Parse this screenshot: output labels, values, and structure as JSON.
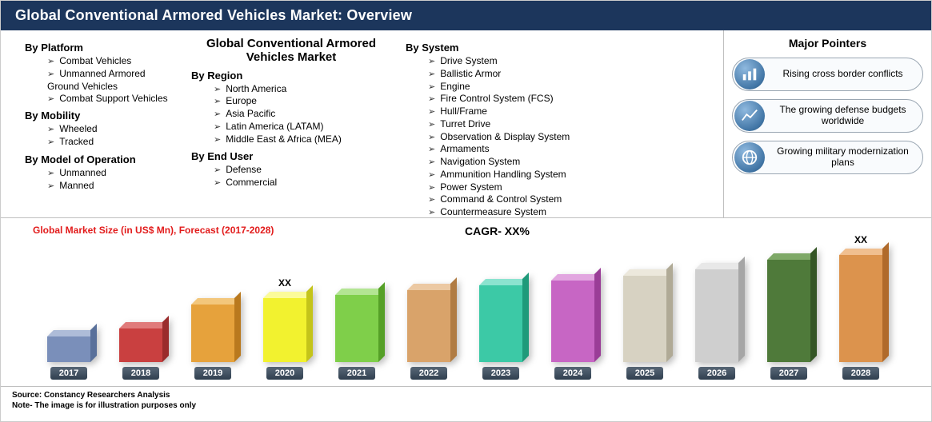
{
  "title": "Global Conventional Armored Vehicles Market: Overview",
  "segments": {
    "col1": [
      {
        "heading": "By Platform",
        "items": [
          "Combat Vehicles",
          "Unmanned Armored Ground Vehicles",
          "Combat Support Vehicles"
        ]
      },
      {
        "heading": "By Mobility",
        "items": [
          "Wheeled",
          "Tracked"
        ]
      },
      {
        "heading": "By Model of Operation",
        "items": [
          "Unmanned",
          "Manned"
        ]
      }
    ],
    "col2_title": "Global Conventional Armored Vehicles Market",
    "col2": [
      {
        "heading": "By Region",
        "items": [
          "North America",
          "Europe",
          "Asia Pacific",
          "Latin America (LATAM)",
          "Middle East & Africa (MEA)"
        ]
      },
      {
        "heading": "By End User",
        "items": [
          "Defense",
          "Commercial"
        ]
      }
    ],
    "col3": [
      {
        "heading": "By System",
        "items": [
          "Drive System",
          "Ballistic Armor",
          "Engine",
          "Fire Control System (FCS)",
          "Hull/Frame",
          "Turret Drive",
          "Observation & Display System",
          "Armaments",
          "Navigation System",
          "Ammunition Handling System",
          "Power System",
          "Command & Control System",
          "Countermeasure System"
        ]
      }
    ]
  },
  "pointers": {
    "title": "Major Pointers",
    "items": [
      {
        "icon": "bar-chart-icon",
        "label": "Rising cross border conflicts"
      },
      {
        "icon": "trend-line-icon",
        "label": "The growing defense budgets worldwide"
      },
      {
        "icon": "globe-icon",
        "label": "Growing military modernization plans"
      }
    ]
  },
  "chart": {
    "title": "Global Market Size (in US$ Mn), Forecast (2017-2028)",
    "cagr_label": "CAGR- XX%",
    "xx_label": "XX",
    "type": "bar",
    "bars": [
      {
        "year": "2017",
        "value": 32,
        "front": "#7a8fba",
        "top": "#aebcd8",
        "side": "#59709a"
      },
      {
        "year": "2018",
        "value": 42,
        "front": "#c94040",
        "top": "#e07b7b",
        "side": "#9a2c2c"
      },
      {
        "year": "2019",
        "value": 72,
        "front": "#e6a23c",
        "top": "#f3c77c",
        "side": "#b9791e"
      },
      {
        "year": "2020",
        "value": 80,
        "front": "#f2f22f",
        "top": "#fbfb9a",
        "side": "#c4c41a"
      },
      {
        "year": "2021",
        "value": 84,
        "front": "#7fcf4a",
        "top": "#b3e593",
        "side": "#55a027"
      },
      {
        "year": "2022",
        "value": 90,
        "front": "#d9a36a",
        "top": "#ecc9a3",
        "side": "#b07c44"
      },
      {
        "year": "2023",
        "value": 96,
        "front": "#3cc9a6",
        "top": "#8be3cf",
        "side": "#1f9a7a"
      },
      {
        "year": "2024",
        "value": 102,
        "front": "#c766c4",
        "top": "#e2a6e0",
        "side": "#9a3d97"
      },
      {
        "year": "2025",
        "value": 108,
        "front": "#d7d2c2",
        "top": "#ece8dc",
        "side": "#b0aa96"
      },
      {
        "year": "2026",
        "value": 116,
        "front": "#cfcfcf",
        "top": "#e8e8e8",
        "side": "#a6a6a6"
      },
      {
        "year": "2027",
        "value": 128,
        "front": "#4f7a3a",
        "top": "#7ea867",
        "side": "#345525"
      },
      {
        "year": "2028",
        "value": 134,
        "front": "#dc934d",
        "top": "#f0bf90",
        "side": "#b06a2b"
      }
    ],
    "xx_over_years": [
      "2020",
      "2028"
    ]
  },
  "footer": {
    "source": "Source: Constancy Researchers Analysis",
    "note": "Note- The image is for illustration purposes only"
  }
}
